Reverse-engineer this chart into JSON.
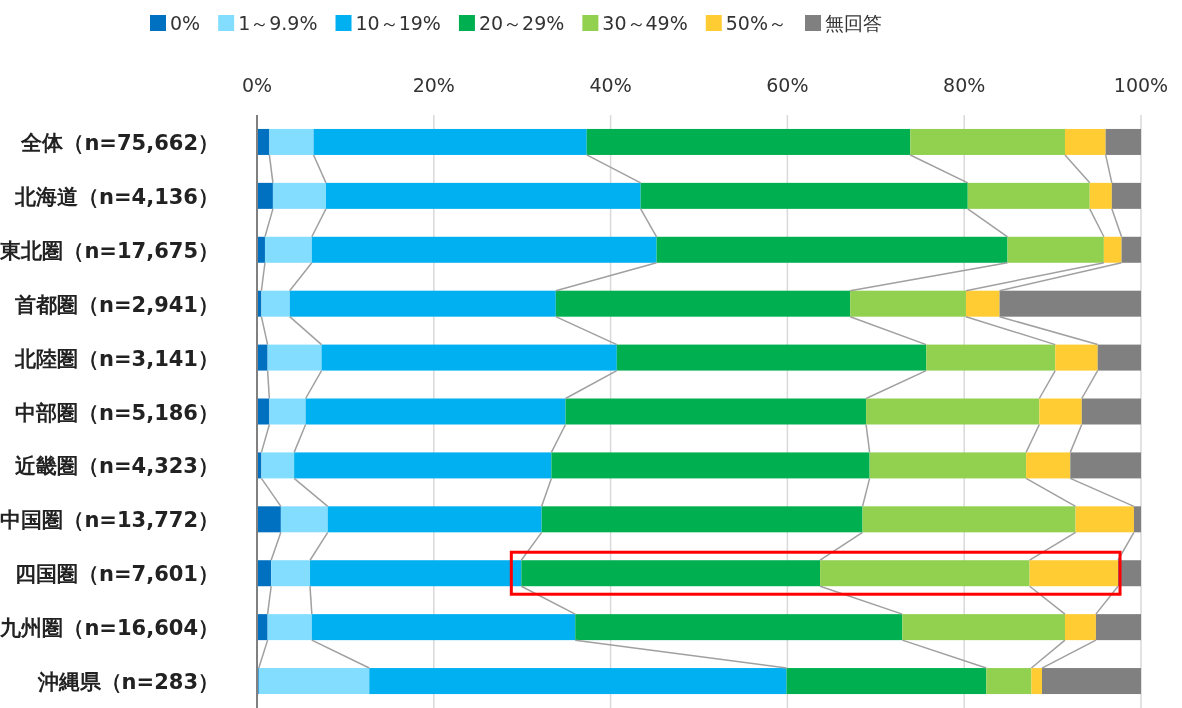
{
  "chart_data": {
    "type": "bar",
    "orientation": "horizontal",
    "stacked": true,
    "categories": [
      "全体（n=75,662）",
      "北海道（n=4,136）",
      "東北圏（n=17,675）",
      "首都圏（n=2,941）",
      "北陸圏（n=3,141）",
      "中部圏（n=5,186）",
      "近畿圏（n=4,323）",
      "中国圏（n=13,772）",
      "四国圏（n=7,601）",
      "九州圏（n=16,604）",
      "沖縄県（n=283）"
    ],
    "series": [
      {
        "name": "0%",
        "color": "#0070c0",
        "values": [
          1.4,
          1.8,
          0.9,
          0.5,
          1.2,
          1.4,
          0.5,
          2.7,
          1.6,
          1.2,
          0.2
        ]
      },
      {
        "name": "1～9.9%",
        "color": "#83ddff",
        "values": [
          5.0,
          6.0,
          5.3,
          3.2,
          6.1,
          4.1,
          3.7,
          5.3,
          4.4,
          5.0,
          12.5
        ]
      },
      {
        "name": "10～19%",
        "color": "#00b0f0",
        "values": [
          30.9,
          35.6,
          39.0,
          30.1,
          33.4,
          29.4,
          29.1,
          24.2,
          23.9,
          29.8,
          47.2
        ]
      },
      {
        "name": "20～29%",
        "color": "#00b050",
        "values": [
          36.6,
          37.0,
          39.7,
          33.3,
          35.0,
          34.0,
          36.0,
          36.3,
          33.8,
          37.0,
          22.6
        ]
      },
      {
        "name": "30～49%",
        "color": "#92d050",
        "values": [
          17.5,
          13.8,
          10.9,
          13.1,
          14.6,
          19.6,
          17.7,
          24.1,
          23.7,
          18.4,
          5.1
        ]
      },
      {
        "name": "50%～",
        "color": "#ffcd33",
        "values": [
          4.6,
          2.5,
          2.0,
          3.8,
          4.8,
          4.8,
          5.0,
          6.6,
          10.0,
          3.5,
          1.2
        ]
      },
      {
        "name": "無回答",
        "color": "#808080",
        "values": [
          4.0,
          3.3,
          2.2,
          16.0,
          4.9,
          6.7,
          8.0,
          0.8,
          2.6,
          5.1,
          11.2
        ]
      }
    ],
    "xlim": [
      0,
      100
    ],
    "xticks": [
      {
        "value": 0,
        "label": "0%"
      },
      {
        "value": 20,
        "label": "20%"
      },
      {
        "value": 40,
        "label": "40%"
      },
      {
        "value": 60,
        "label": "60%"
      },
      {
        "value": 80,
        "label": "80%"
      },
      {
        "value": 100,
        "label": "100%"
      }
    ],
    "grid": "x",
    "legend": "top"
  }
}
